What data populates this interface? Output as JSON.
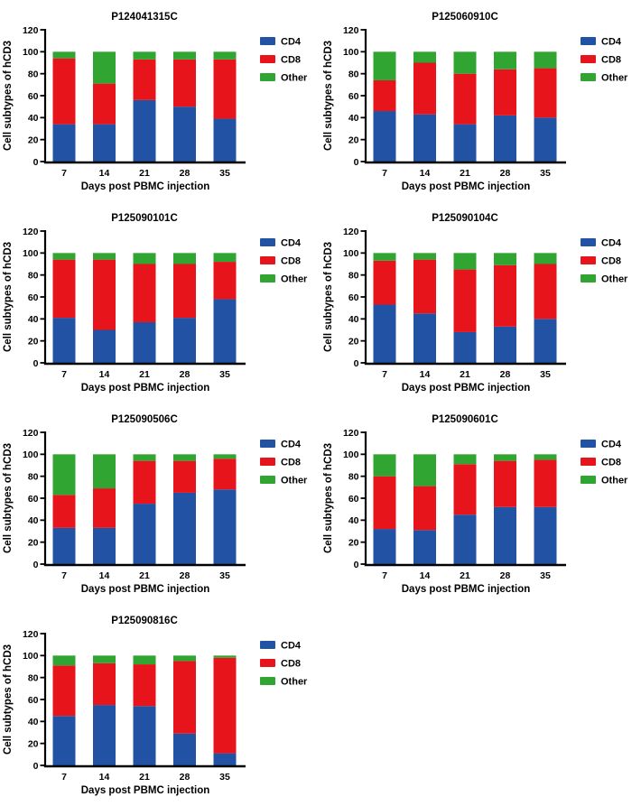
{
  "figure": {
    "background": "#FFFFFF",
    "columns": 2,
    "colors": {
      "cd4": "#2152A3",
      "cd8": "#E8141B",
      "other": "#31A532",
      "axis": "#000000",
      "text": "#000000"
    }
  },
  "chart_data": [
    {
      "type": "bar",
      "stacked": true,
      "title": "P124041315C",
      "categories": [
        "7",
        "14",
        "21",
        "28",
        "35"
      ],
      "series": [
        {
          "name": "CD4",
          "color": "#2152A3",
          "values": [
            34,
            34,
            56,
            50,
            39
          ]
        },
        {
          "name": "CD8",
          "color": "#E8141B",
          "values": [
            60,
            37,
            37,
            43,
            54
          ]
        },
        {
          "name": "Other",
          "color": "#31A532",
          "values": [
            6,
            29,
            7,
            7,
            7
          ]
        }
      ],
      "xlabel": "Days post PBMC injection",
      "ylabel": "Cell subtypes of hCD3",
      "ylim": [
        0,
        120
      ],
      "yticks": [
        0,
        20,
        40,
        60,
        80,
        100,
        120
      ],
      "grid": false,
      "legend_position": "right"
    },
    {
      "type": "bar",
      "stacked": true,
      "title": "P125060910C",
      "categories": [
        "7",
        "14",
        "21",
        "28",
        "35"
      ],
      "series": [
        {
          "name": "CD4",
          "color": "#2152A3",
          "values": [
            46,
            43,
            34,
            42,
            40
          ]
        },
        {
          "name": "CD8",
          "color": "#E8141B",
          "values": [
            28,
            47,
            46,
            42,
            45
          ]
        },
        {
          "name": "Other",
          "color": "#31A532",
          "values": [
            26,
            10,
            20,
            16,
            15
          ]
        }
      ],
      "xlabel": "Days post PBMC injection",
      "ylabel": "Cell subtypes of hCD3",
      "ylim": [
        0,
        120
      ],
      "yticks": [
        0,
        20,
        40,
        60,
        80,
        100,
        120
      ],
      "grid": false,
      "legend_position": "right"
    },
    {
      "type": "bar",
      "stacked": true,
      "title": "P125090101C",
      "categories": [
        "7",
        "14",
        "21",
        "28",
        "35"
      ],
      "series": [
        {
          "name": "CD4",
          "color": "#2152A3",
          "values": [
            41,
            30,
            37,
            41,
            58
          ]
        },
        {
          "name": "CD8",
          "color": "#E8141B",
          "values": [
            53,
            64,
            53,
            49,
            34
          ]
        },
        {
          "name": "Other",
          "color": "#31A532",
          "values": [
            6,
            6,
            10,
            10,
            8
          ]
        }
      ],
      "xlabel": "Days post PBMC injection",
      "ylabel": "Cell subtypes of hCD3",
      "ylim": [
        0,
        120
      ],
      "yticks": [
        0,
        20,
        40,
        60,
        80,
        100,
        120
      ],
      "grid": false,
      "legend_position": "right"
    },
    {
      "type": "bar",
      "stacked": true,
      "title": "P125090104C",
      "categories": [
        "7",
        "14",
        "21",
        "28",
        "35"
      ],
      "series": [
        {
          "name": "CD4",
          "color": "#2152A3",
          "values": [
            53,
            45,
            28,
            33,
            40
          ]
        },
        {
          "name": "CD8",
          "color": "#E8141B",
          "values": [
            40,
            49,
            57,
            56,
            50
          ]
        },
        {
          "name": "Other",
          "color": "#31A532",
          "values": [
            7,
            6,
            15,
            11,
            10
          ]
        }
      ],
      "xlabel": "Days post PBMC injection",
      "ylabel": "Cell subtypes of hCD3",
      "ylim": [
        0,
        120
      ],
      "yticks": [
        0,
        20,
        40,
        60,
        80,
        100,
        120
      ],
      "grid": false,
      "legend_position": "right"
    },
    {
      "type": "bar",
      "stacked": true,
      "title": "P125090506C",
      "categories": [
        "7",
        "14",
        "21",
        "28",
        "35"
      ],
      "series": [
        {
          "name": "CD4",
          "color": "#2152A3",
          "values": [
            33,
            33,
            55,
            65,
            68
          ]
        },
        {
          "name": "CD8",
          "color": "#E8141B",
          "values": [
            30,
            36,
            39,
            29,
            28
          ]
        },
        {
          "name": "Other",
          "color": "#31A532",
          "values": [
            37,
            31,
            6,
            6,
            4
          ]
        }
      ],
      "xlabel": "Days post PBMC injection",
      "ylabel": "Cell subtypes of hCD3",
      "ylim": [
        0,
        120
      ],
      "yticks": [
        0,
        20,
        40,
        60,
        80,
        100,
        120
      ],
      "grid": false,
      "legend_position": "right"
    },
    {
      "type": "bar",
      "stacked": true,
      "title": "P125090601C",
      "categories": [
        "7",
        "14",
        "21",
        "28",
        "35"
      ],
      "series": [
        {
          "name": "CD4",
          "color": "#2152A3",
          "values": [
            32,
            31,
            45,
            52,
            52
          ]
        },
        {
          "name": "CD8",
          "color": "#E8141B",
          "values": [
            48,
            40,
            46,
            42,
            43
          ]
        },
        {
          "name": "Other",
          "color": "#31A532",
          "values": [
            20,
            29,
            9,
            6,
            5
          ]
        }
      ],
      "xlabel": "Days post PBMC injection",
      "ylabel": "Cell subtypes of hCD3",
      "ylim": [
        0,
        120
      ],
      "yticks": [
        0,
        20,
        40,
        60,
        80,
        100,
        120
      ],
      "grid": false,
      "legend_position": "right"
    },
    {
      "type": "bar",
      "stacked": true,
      "title": "P125090816C",
      "categories": [
        "7",
        "14",
        "21",
        "28",
        "35"
      ],
      "series": [
        {
          "name": "CD4",
          "color": "#2152A3",
          "values": [
            45,
            55,
            54,
            29,
            11
          ]
        },
        {
          "name": "CD8",
          "color": "#E8141B",
          "values": [
            46,
            38,
            38,
            66,
            87
          ]
        },
        {
          "name": "Other",
          "color": "#31A532",
          "values": [
            9,
            7,
            8,
            5,
            2
          ]
        }
      ],
      "xlabel": "Days post PBMC injection",
      "ylabel": "Cell subtypes of hCD3",
      "ylim": [
        0,
        120
      ],
      "yticks": [
        0,
        20,
        40,
        60,
        80,
        100,
        120
      ],
      "grid": false,
      "legend_position": "right"
    }
  ]
}
